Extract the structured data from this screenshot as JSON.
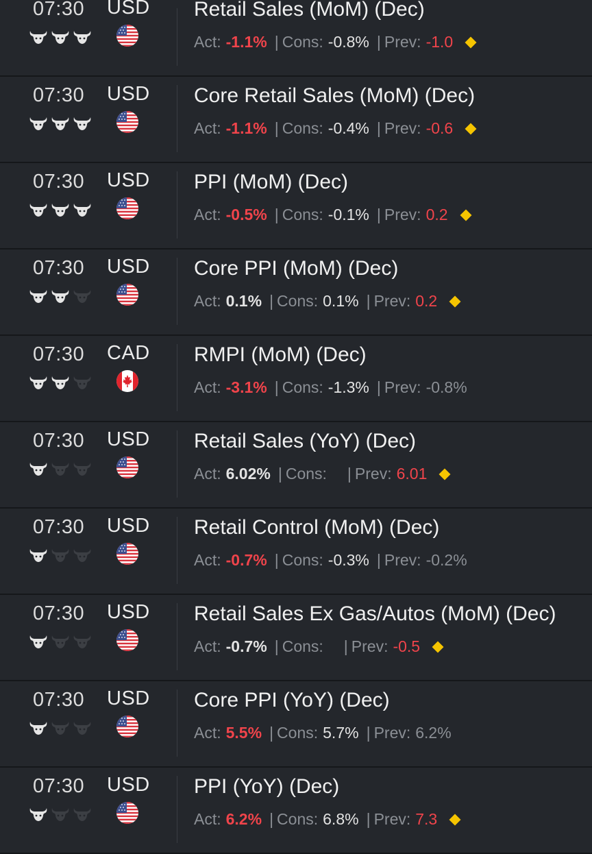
{
  "events": [
    {
      "time": "07:30",
      "currency": "USD",
      "flag": "us-flag-icon",
      "importance": 3,
      "title": "Retail Sales (MoM) (Dec)",
      "actual": "-1.1%",
      "actual_color": "red",
      "consensus": "-0.8%",
      "previous": "-1.0",
      "previous_color": "red",
      "revised": true
    },
    {
      "time": "07:30",
      "currency": "USD",
      "flag": "us-flag-icon",
      "importance": 3,
      "title": "Core Retail Sales (MoM) (Dec)",
      "actual": "-1.1%",
      "actual_color": "red",
      "consensus": "-0.4%",
      "previous": "-0.6",
      "previous_color": "red",
      "revised": true
    },
    {
      "time": "07:30",
      "currency": "USD",
      "flag": "us-flag-icon",
      "importance": 3,
      "title": "PPI (MoM) (Dec)",
      "actual": "-0.5%",
      "actual_color": "red",
      "consensus": "-0.1%",
      "previous": "0.2",
      "previous_color": "red",
      "revised": true
    },
    {
      "time": "07:30",
      "currency": "USD",
      "flag": "us-flag-icon",
      "importance": 2,
      "title": "Core PPI (MoM) (Dec)",
      "actual": "0.1%",
      "actual_color": "neutral",
      "consensus": "0.1%",
      "previous": "0.2",
      "previous_color": "red",
      "revised": true
    },
    {
      "time": "07:30",
      "currency": "CAD",
      "flag": "ca-flag-icon",
      "importance": 2,
      "title": "RMPI (MoM) (Dec)",
      "actual": "-3.1%",
      "actual_color": "red",
      "consensus": "-1.3%",
      "previous": "-0.8%",
      "previous_color": "gray",
      "revised": false
    },
    {
      "time": "07:30",
      "currency": "USD",
      "flag": "us-flag-icon",
      "importance": 1,
      "title": "Retail Sales (YoY) (Dec)",
      "actual": "6.02%",
      "actual_color": "neutral",
      "consensus": "",
      "previous": "6.01",
      "previous_color": "red",
      "revised": true
    },
    {
      "time": "07:30",
      "currency": "USD",
      "flag": "us-flag-icon",
      "importance": 1,
      "title": "Retail Control (MoM) (Dec)",
      "actual": "-0.7%",
      "actual_color": "red",
      "consensus": "-0.3%",
      "previous": "-0.2%",
      "previous_color": "gray",
      "revised": false
    },
    {
      "time": "07:30",
      "currency": "USD",
      "flag": "us-flag-icon",
      "importance": 1,
      "title": "Retail Sales Ex Gas/Autos (MoM) (Dec)",
      "actual": "-0.7%",
      "actual_color": "neutral",
      "consensus": "",
      "previous": "-0.5",
      "previous_color": "red",
      "revised": true
    },
    {
      "time": "07:30",
      "currency": "USD",
      "flag": "us-flag-icon",
      "importance": 1,
      "title": "Core PPI (YoY) (Dec)",
      "actual": "5.5%",
      "actual_color": "red",
      "consensus": "5.7%",
      "previous": "6.2%",
      "previous_color": "gray",
      "revised": false
    },
    {
      "time": "07:30",
      "currency": "USD",
      "flag": "us-flag-icon",
      "importance": 1,
      "title": "PPI (YoY) (Dec)",
      "actual": "6.2%",
      "actual_color": "red",
      "consensus": "6.8%",
      "previous": "7.3",
      "previous_color": "red",
      "revised": true
    }
  ],
  "labels": {
    "actual": "Act:",
    "consensus": "Cons:",
    "previous": "Prev:",
    "separator": "|"
  },
  "colors": {
    "background": "#24272c",
    "red": "#f0444b",
    "neutral": "#e3e3e3",
    "gray": "#8b8f95",
    "diamond": "#f5c400",
    "bull_active": "#e6e6e6",
    "bull_inactive": "#3c3f44"
  }
}
